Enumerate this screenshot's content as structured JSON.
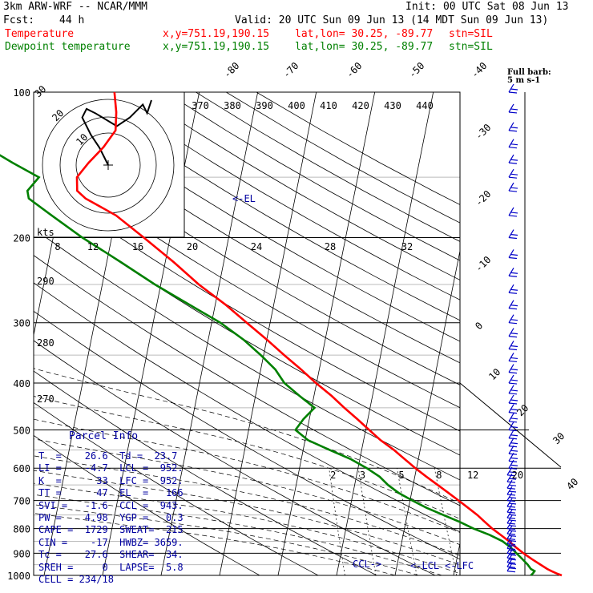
{
  "header": {
    "model": "3km ARW-WRF -- NCAR/MMM",
    "init": "Init: 00 UTC Sat 08 Jun 13",
    "fcst_label": "Fcst:",
    "fcst_value": "44 h",
    "valid": "Valid: 20 UTC Sun 09 Jun 13 (14 MDT Sun 09 Jun 13)",
    "temp_label": "Temperature",
    "dew_label": "Dewpoint temperature",
    "xy": "x,y=751.19,190.15",
    "latlon": "lat,lon= 30.25, -89.77",
    "stn": "stn=SIL",
    "colors": {
      "temp": "#ff0000",
      "dew": "#008000",
      "label_blue": "#0000a0",
      "barb": "#0000c8"
    }
  },
  "hodograph": {
    "units": "kts",
    "ring_labels": [
      "30",
      "20",
      "10"
    ],
    "rotated_theta_labels": [
      "370",
      "380",
      "390",
      "400",
      "410",
      "420",
      "430",
      "440"
    ]
  },
  "barb_label": "Full barb:\n5 m s-1",
  "parcel_info": {
    "title": "Parcel Info",
    "rows": [
      "T  =    26.6  Td =  23.7",
      "LI =    -4.7  LCL =  952.",
      "K  =      33  LFC =  952.",
      "TT =      47  EL  =   166",
      "SVI =   -1.6  CCL =  943.",
      "PW =    4.98  YGP =   0.3",
      "CAPE =  1729  SWEAT=  215",
      "CIN =    -17  HWBZ= 3659.",
      "Tc =    27.6  SHEAR=  34.",
      "SREH =     0  LAPSE=  5.8",
      "CELL = 234/18"
    ]
  },
  "markers": {
    "el": "<-EL",
    "ccl": "CCL->",
    "lcl": "<-LCL",
    "lfc": "<-LFC"
  },
  "chart_data": {
    "type": "line",
    "title": "",
    "xlabel": "",
    "ylabel": "",
    "pressure_levels": [
      "100",
      "200",
      "300",
      "400",
      "500",
      "600",
      "700",
      "800",
      "900",
      "1000"
    ],
    "temperature_ticks": [
      "-80",
      "-70",
      "-60",
      "-50",
      "-40",
      "-30",
      "-20",
      "-10",
      "0",
      "10",
      "20",
      "30",
      "40"
    ],
    "mixing_ratio_labels": [
      "2",
      "3",
      "5",
      "8",
      "12",
      "20"
    ],
    "wind_speed_scale_labels": [
      "8",
      "12",
      "16",
      "20",
      "24",
      "28",
      "32"
    ],
    "theta_labels_left": [
      "290",
      "280",
      "270"
    ],
    "ylim": [
      1000,
      100
    ],
    "xlim": [
      -40,
      40
    ],
    "series": [
      {
        "name": "Temperature",
        "p": [
          1000,
          990,
          980,
          970,
          950,
          925,
          900,
          875,
          850,
          825,
          800,
          775,
          750,
          725,
          700,
          675,
          650,
          625,
          600,
          575,
          550,
          525,
          500,
          475,
          450,
          425,
          400,
          375,
          350,
          325,
          300,
          275,
          250,
          225,
          200,
          180,
          166,
          160,
          150,
          140,
          130,
          120,
          110,
          100
        ],
        "t": [
          28.5,
          27.5,
          26.6,
          25.8,
          24.5,
          22.8,
          21.2,
          19.7,
          18.3,
          16.7,
          15.0,
          13.5,
          12.0,
          10.2,
          8.3,
          6.3,
          4.2,
          2.0,
          -0.2,
          -2.3,
          -4.5,
          -7.1,
          -9.4,
          -11.8,
          -14.4,
          -17.0,
          -20.1,
          -23.1,
          -26.5,
          -30.0,
          -34.0,
          -38.3,
          -43.5,
          -48.5,
          -54.5,
          -60.0,
          -65.8,
          -67.5,
          -68.0,
          -66.5,
          -64.5,
          -63.0,
          -63.5,
          -64.5
        ]
      },
      {
        "name": "Dewpoint temperature",
        "p": [
          1000,
          990,
          980,
          970,
          950,
          925,
          900,
          875,
          850,
          825,
          800,
          775,
          750,
          725,
          700,
          675,
          650,
          625,
          600,
          575,
          550,
          525,
          500,
          475,
          450,
          425,
          400,
          375,
          350,
          325,
          300,
          275,
          250,
          225,
          200,
          180,
          166,
          160,
          150,
          140,
          130,
          120,
          110,
          100
        ],
        "t": [
          23.2,
          23.5,
          23.7,
          23.0,
          22.3,
          21.2,
          20.0,
          18.8,
          17.2,
          14.8,
          11.8,
          9.2,
          6.2,
          3.1,
          0.4,
          -2.2,
          -4.3,
          -6.0,
          -8.5,
          -11.5,
          -15.5,
          -19.5,
          -22.0,
          -21.0,
          -19.5,
          -22.5,
          -25.5,
          -27.5,
          -30.5,
          -34.0,
          -38.5,
          -44.5,
          -51.0,
          -57.5,
          -65.0,
          -71.0,
          -75.5,
          -76.0,
          -74.5,
          -79.5,
          -84.5,
          -83.5,
          -84.0,
          -84.5
        ]
      }
    ],
    "hodograph_track_kts": [
      [
        0,
        0
      ],
      [
        -4,
        8
      ],
      [
        -8,
        14
      ],
      [
        -12,
        22
      ],
      [
        -10,
        26
      ],
      [
        -6,
        24
      ],
      [
        4,
        18
      ],
      [
        10,
        22
      ],
      [
        14,
        26
      ],
      [
        16,
        28
      ],
      [
        18,
        24
      ],
      [
        20,
        30
      ]
    ],
    "wind_barbs": {
      "levels_p": [
        980,
        960,
        940,
        920,
        900,
        880,
        860,
        840,
        820,
        800,
        780,
        760,
        740,
        720,
        700,
        680,
        660,
        640,
        620,
        600,
        580,
        560,
        540,
        520,
        500,
        480,
        460,
        440,
        420,
        400,
        380,
        360,
        340,
        320,
        300,
        280,
        260,
        240,
        220,
        200,
        180,
        160,
        150,
        140,
        130,
        120,
        110,
        100
      ]
    },
    "grid": true
  }
}
